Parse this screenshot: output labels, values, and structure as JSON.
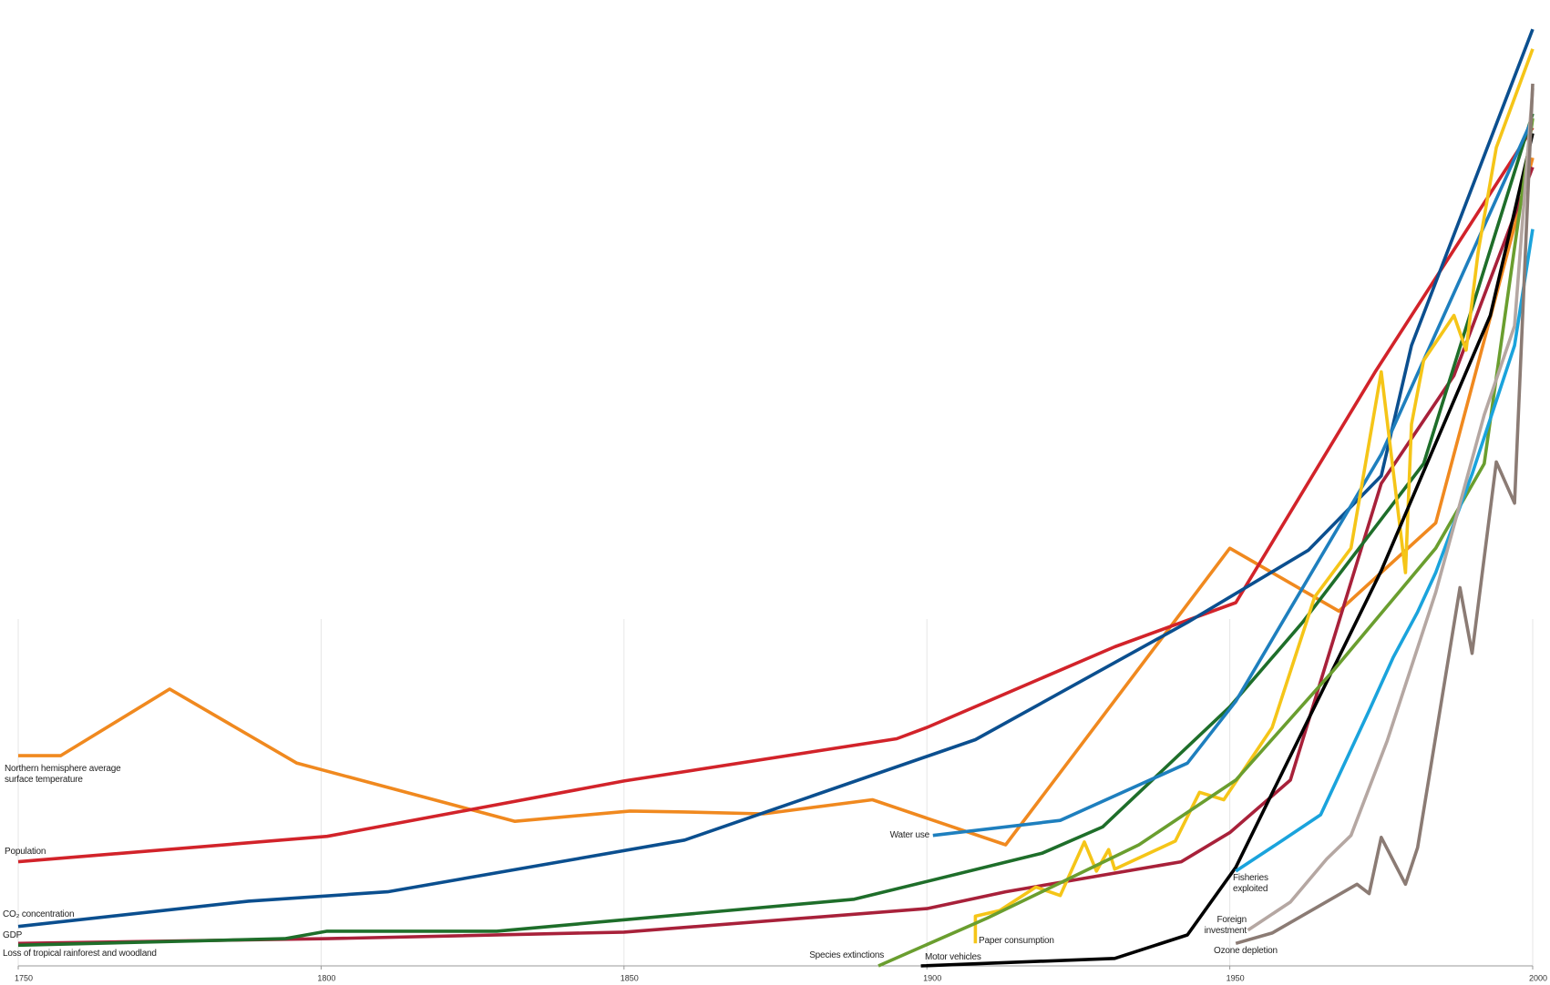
{
  "chart_data": {
    "type": "line",
    "xlim": [
      1750,
      2000
    ],
    "xticks": [
      1750,
      1800,
      1850,
      1900,
      1950,
      2000
    ],
    "ylim": [
      0,
      100
    ],
    "grid": true,
    "series": [
      {
        "name": "Northern hemisphere average surface temperature",
        "color": "#f0891f",
        "x": [
          1750,
          1757,
          1775,
          1796,
          1832,
          1851,
          1860,
          1873,
          1891,
          1913,
          1950,
          1968,
          1984,
          2000
        ],
        "values": [
          22.4,
          22.4,
          29.5,
          21.6,
          15.4,
          16.5,
          16.4,
          16.2,
          17.7,
          12.9,
          44.5,
          37.8,
          47.2,
          86.1
        ]
      },
      {
        "name": "Population",
        "color": "#d2232a",
        "x": [
          1750,
          1801,
          1850,
          1895,
          1900,
          1931,
          1951,
          1974,
          2000
        ],
        "values": [
          11.1,
          13.8,
          19.7,
          24.2,
          25.4,
          34.0,
          38.7,
          63.3,
          89.3
        ]
      },
      {
        "name": "CO₂ concentration",
        "color": "#0b4f8f",
        "x": [
          1750,
          1788,
          1811,
          1860,
          1908,
          1943,
          1963,
          1975,
          1980,
          2000
        ],
        "values": [
          4.2,
          6.9,
          7.9,
          13.4,
          24.1,
          36.6,
          44.3,
          52.2,
          66.1,
          99.8
        ]
      },
      {
        "name": "GDP",
        "color": "#a8213a",
        "x": [
          1750,
          1801,
          1850,
          1900,
          1913,
          1942,
          1950,
          1960,
          1975,
          1987,
          2000
        ],
        "values": [
          2.4,
          2.9,
          3.6,
          6.1,
          7.9,
          11.1,
          14.2,
          19.8,
          51.4,
          62.9,
          85.1
        ]
      },
      {
        "name": "Loss of tropical rainforest and woodland",
        "color": "#1e6e2a",
        "x": [
          1750,
          1794,
          1801,
          1829,
          1888,
          1919,
          1929,
          1950,
          1962,
          1982,
          2000
        ],
        "values": [
          2.2,
          2.9,
          3.7,
          3.7,
          7.1,
          12.0,
          14.8,
          27.6,
          36.6,
          53.5,
          90.8
        ]
      },
      {
        "name": "Water use",
        "color": "#1e7fbe",
        "x": [
          1901,
          1922,
          1943,
          1951,
          1975,
          2000
        ],
        "values": [
          13.9,
          15.5,
          21.6,
          28.2,
          54.5,
          90.3
        ]
      },
      {
        "name": "Paper consumption",
        "color": "#f5c518",
        "x": [
          1908,
          1908,
          1912,
          1918,
          1922,
          1926,
          1928,
          1930,
          1931,
          1941,
          1945,
          1949,
          1957,
          1964,
          1970,
          1975,
          1979,
          1980,
          1982,
          1987,
          1989,
          1991,
          1994,
          2000
        ],
        "values": [
          2.4,
          5.3,
          5.9,
          8.4,
          7.5,
          13.2,
          10.1,
          12.4,
          10.3,
          13.3,
          18.5,
          17.7,
          25.4,
          39.3,
          44.5,
          63.3,
          41.9,
          57.7,
          64.5,
          69.3,
          65.6,
          76.1,
          87.2,
          97.7
        ]
      },
      {
        "name": "Motor vehicles",
        "color": "#000000",
        "x": [
          1899,
          1931,
          1943,
          1951,
          1975,
          1993,
          2000
        ],
        "values": [
          0,
          0.8,
          3.3,
          10.5,
          42.1,
          69.3,
          88.7
        ]
      },
      {
        "name": "Species extinctions",
        "color": "#6a9e2f",
        "x": [
          1892,
          1910,
          1935,
          1951,
          1967,
          1984,
          1992,
          2000
        ],
        "values": [
          0,
          5.1,
          12.9,
          19.8,
          31.4,
          44.5,
          53.5,
          90.3
        ]
      },
      {
        "name": "Fisheries exploited",
        "color": "#1aa3dc",
        "x": [
          1951,
          1959,
          1965,
          1973,
          1977,
          1981,
          1984,
          1990,
          1997,
          2000
        ],
        "values": [
          10.1,
          13.5,
          16.1,
          27.2,
          32.9,
          37.7,
          41.9,
          52.4,
          66.1,
          78.5
        ]
      },
      {
        "name": "Foreign investment",
        "color": "#b5a7a2",
        "x": [
          1953,
          1960,
          1966,
          1970,
          1976,
          1984,
          1992,
          1997,
          2000
        ],
        "values": [
          3.8,
          6.8,
          11.4,
          13.9,
          24.0,
          39.8,
          58.7,
          68.2,
          93.5
        ]
      },
      {
        "name": "Ozone depletion",
        "color": "#8b7b74",
        "x": [
          1951,
          1957,
          1971,
          1973,
          1975,
          1979,
          1981,
          1988,
          1990,
          1994,
          1997,
          2000
        ],
        "values": [
          2.4,
          3.5,
          8.7,
          7.7,
          13.7,
          8.7,
          12.6,
          40.3,
          33.3,
          53.7,
          49.3,
          94.0
        ]
      }
    ]
  }
}
